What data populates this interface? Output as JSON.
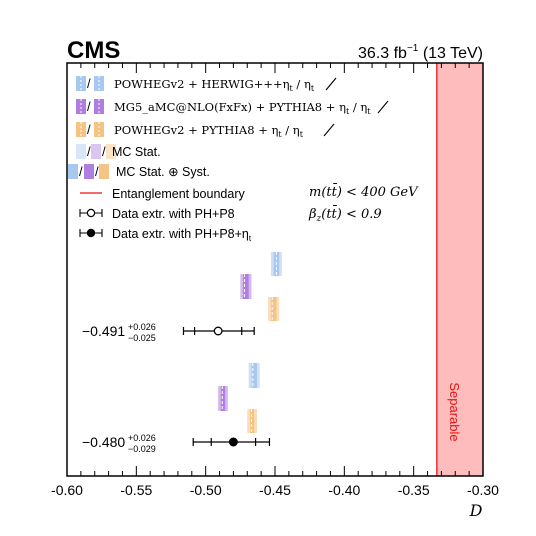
{
  "header": {
    "experiment": "CMS",
    "luminosity_prefix": "36.3 fb",
    "luminosity_exp": "−1",
    "energy": "(13 TeV)"
  },
  "legend": [
    {
      "id": "powheg-herwig",
      "kind": "box",
      "colors": [
        "#a9c8f0",
        "#a9c8f0"
      ],
      "label": "POWHEGv2 + HERWIG+++η",
      "sub": "t",
      "label_tail": " / η",
      "sub_tail": "t"
    },
    {
      "id": "mg5",
      "kind": "box",
      "colors": [
        "#b07ee0",
        "#b07ee0"
      ],
      "label": "MG5_aMC@NLO(FxFx) + PYTHIA8 + η",
      "sub": "t",
      "label_tail": " / η",
      "sub_tail": "t"
    },
    {
      "id": "powheg-pythia",
      "kind": "box",
      "colors": [
        "#f5c383",
        "#f5c383"
      ],
      "label": "POWHEGv2 + PYTHIA8 + η",
      "sub": "t",
      "label_tail": " / η",
      "sub_tail": "t"
    },
    {
      "id": "mc-stat",
      "kind": "mcstat",
      "label": "MC Stat."
    },
    {
      "id": "mc-stat-syst",
      "kind": "mcsyst",
      "label": "MC Stat. ⊕ Syst."
    },
    {
      "id": "entanglement",
      "kind": "line",
      "label": "Entanglement boundary"
    },
    {
      "id": "data-php8",
      "kind": "open",
      "label": "Data extr. with PH+P8"
    },
    {
      "id": "data-php8-eta",
      "kind": "filled",
      "label": "Data extr. with PH+P8+η",
      "sub": "t"
    }
  ],
  "cuts": {
    "line1": "m(tt̄) < 400 GeV",
    "line2": "β",
    "line2_sub": "z",
    "line2_tail": "(tt̄) < 0.9"
  },
  "measurements": [
    {
      "value": "−0.491",
      "up": "+0.026",
      "down": "−0.025"
    },
    {
      "value": "−0.480",
      "up": "+0.026",
      "down": "−0.029"
    }
  ],
  "separable_label": "Separable",
  "chart_data": {
    "type": "scatter",
    "xlabel": "D",
    "xlim": [
      -0.6,
      -0.3
    ],
    "x_ticks": [
      "-0.60",
      "-0.55",
      "-0.50",
      "-0.45",
      "-0.40",
      "-0.35",
      "-0.30"
    ],
    "x_tick_values": [
      -0.6,
      -0.55,
      -0.5,
      -0.45,
      -0.4,
      -0.35,
      -0.3
    ],
    "entanglement_boundary": -0.3333,
    "separable_region": [
      -0.3333,
      -0.3
    ],
    "data_points": [
      {
        "name": "Data extr. with PH+P8",
        "marker": "open",
        "x": -0.491,
        "stat_lo": -0.508,
        "stat_hi": -0.474,
        "tot_lo": -0.516,
        "tot_hi": -0.465,
        "row": 1
      },
      {
        "name": "Data extr. with PH+P8+η_t",
        "marker": "filled",
        "x": -0.48,
        "stat_lo": -0.496,
        "stat_hi": -0.464,
        "tot_lo": -0.509,
        "tot_hi": -0.454,
        "row": 2
      }
    ],
    "predictions": [
      {
        "name": "POWHEGv2 + HERWIG+++η_t",
        "color": "#a9c8f0",
        "line": "#6f9fd8",
        "x": -0.449,
        "syst_lo": -0.453,
        "syst_hi": -0.445,
        "stat_lo": -0.451,
        "stat_hi": -0.447,
        "row": 1,
        "slot": 0
      },
      {
        "name": "MG5_aMC@NLO(FxFx) + PYTHIA8 + η_t",
        "color": "#b07ee0",
        "line": "#7a3fc0",
        "x": -0.472,
        "syst_lo": -0.475,
        "syst_hi": -0.467,
        "stat_lo": -0.473,
        "stat_hi": -0.469,
        "row": 1,
        "slot": 1
      },
      {
        "name": "POWHEGv2 + PYTHIA8 + η_t",
        "color": "#f5c383",
        "line": "#e09a3c",
        "x": -0.452,
        "syst_lo": -0.455,
        "syst_hi": -0.447,
        "stat_lo": -0.453,
        "stat_hi": -0.449,
        "row": 1,
        "slot": 2
      },
      {
        "name": "POWHEGv2 + HERWIG++ (η_t off)",
        "color": "#a9c8f0",
        "line": "#6f9fd8",
        "x": -0.466,
        "syst_lo": -0.469,
        "syst_hi": -0.461,
        "stat_lo": -0.467,
        "stat_hi": -0.463,
        "row": 2,
        "slot": 0
      },
      {
        "name": "MG5_aMC@NLO(FxFx) + PYTHIA8 (η_t off)",
        "color": "#b07ee0",
        "line": "#7a3fc0",
        "x": -0.488,
        "syst_lo": -0.491,
        "syst_hi": -0.484,
        "stat_lo": -0.489,
        "stat_hi": -0.486,
        "row": 2,
        "slot": 1
      },
      {
        "name": "POWHEGv2 + PYTHIA8 (η_t off)",
        "color": "#f5c383",
        "line": "#e09a3c",
        "x": -0.467,
        "syst_lo": -0.47,
        "syst_hi": -0.463,
        "stat_lo": -0.468,
        "stat_hi": -0.465,
        "row": 2,
        "slot": 2
      }
    ]
  }
}
